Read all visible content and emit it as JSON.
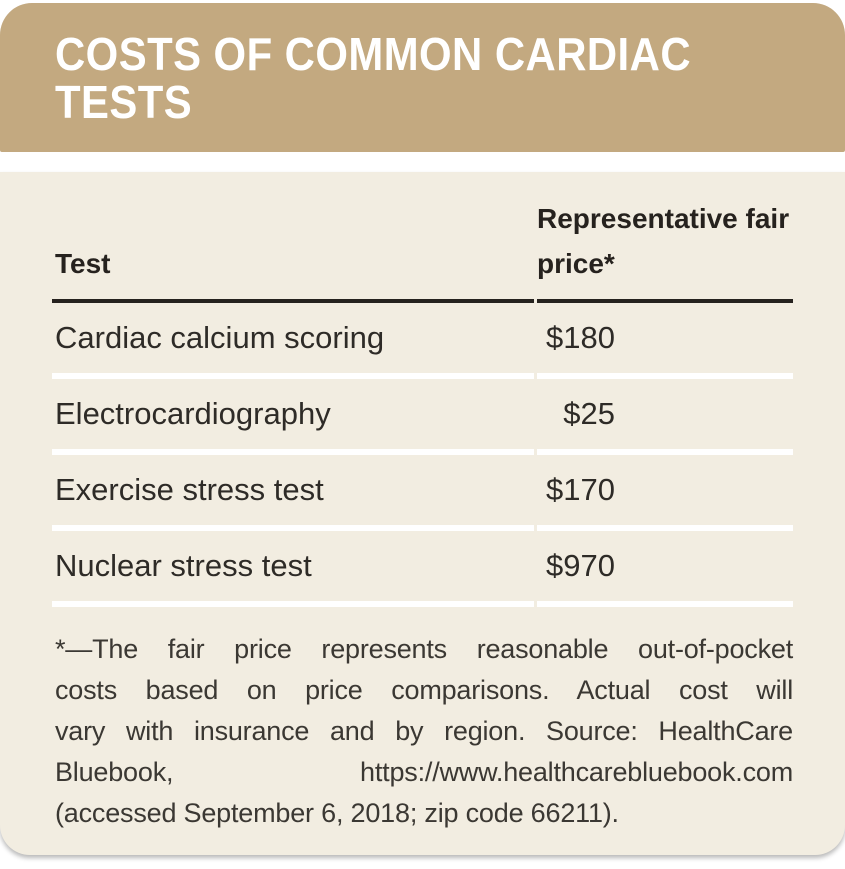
{
  "chart_data": {
    "type": "table",
    "title": "COSTS OF COMMON CARDIAC TESTS",
    "columns": [
      "Test",
      "Representative fair price*"
    ],
    "rows": [
      {
        "test": "Cardiac calcium scoring",
        "price": "$180",
        "price_usd": 180
      },
      {
        "test": "Electrocardiography",
        "price": "$25",
        "price_usd": 25
      },
      {
        "test": "Exercise stress test",
        "price": "$170",
        "price_usd": 170
      },
      {
        "test": "Nuclear stress test",
        "price": "$970",
        "price_usd": 970
      }
    ],
    "footnote_lines": [
      "*—The fair price represents reasonable out-of-pocket",
      "costs based on price comparisons. Actual cost will",
      "vary with insurance and by region. Source: HealthCare",
      "Bluebook, https://www.healthcarebluebook.com",
      "(accessed September 6, 2018; zip code 66211)."
    ]
  },
  "header": {
    "title_lines": [
      "COSTS OF COMMON CARDIAC",
      "TESTS"
    ]
  },
  "style": {
    "band_color": "#c3a980",
    "panel_color": "#f2ede1",
    "title_color": "#ffffff",
    "rule_color": "#26221e",
    "text_color": "#2e2b27",
    "footnote_color": "#3b3833",
    "divider_color": "#ffffff"
  }
}
